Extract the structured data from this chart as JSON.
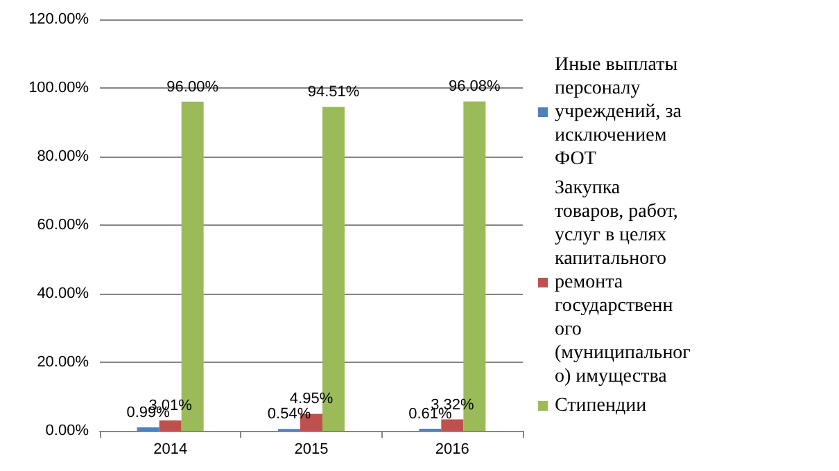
{
  "chart_data": {
    "type": "bar",
    "categories": [
      "2014",
      "2015",
      "2016"
    ],
    "series": [
      {
        "name": "Иные выплаты персоналу учреждений, за исключением ФОТ",
        "color": "#4f81bd",
        "values": [
          0.99,
          0.54,
          0.61
        ],
        "value_labels": [
          "0.99%",
          "0.54%",
          "0.61%"
        ]
      },
      {
        "name": "Закупка товаров, работ, услуг в целях капитального ремонта государственного (муниципального) имущества",
        "color": "#c0504d",
        "values": [
          3.01,
          4.95,
          3.32
        ],
        "value_labels": [
          "3.01%",
          "4.95%",
          "3.32%"
        ]
      },
      {
        "name": "Стипендии",
        "color": "#9bbb59",
        "values": [
          96.0,
          94.51,
          96.08
        ],
        "value_labels": [
          "96.00%",
          "94.51%",
          "96.08%"
        ]
      }
    ],
    "ylim": [
      0,
      120
    ],
    "yticks": [
      {
        "value": 0,
        "label": "0.00%"
      },
      {
        "value": 20,
        "label": "20.00%"
      },
      {
        "value": 40,
        "label": "40.00%"
      },
      {
        "value": 60,
        "label": "60.00%"
      },
      {
        "value": 80,
        "label": "80.00%"
      },
      {
        "value": 100,
        "label": "100.00%"
      },
      {
        "value": 120,
        "label": "120.00%"
      }
    ],
    "grid": "y",
    "legend": "right"
  }
}
